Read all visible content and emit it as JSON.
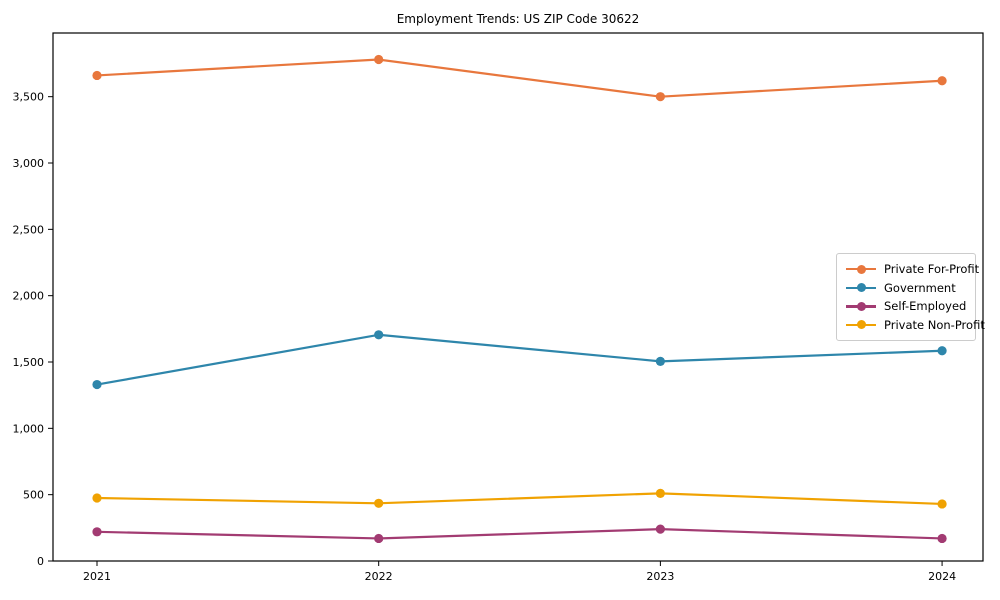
{
  "title": "Employment Trends: US ZIP Code 30622",
  "chart_data": {
    "type": "line",
    "title": "Employment Trends: US ZIP Code 30622",
    "xlabel": "",
    "ylabel": "",
    "grid": false,
    "legend_position": "right",
    "categories": [
      "2021",
      "2022",
      "2023",
      "2024"
    ],
    "series": [
      {
        "name": "Private For-Profit",
        "color": "#E8773D",
        "values": [
          3660,
          3780,
          3500,
          3620
        ]
      },
      {
        "name": "Government",
        "color": "#2E86AB",
        "values": [
          1330,
          1705,
          1505,
          1585
        ]
      },
      {
        "name": "Self-Employed",
        "color": "#A23B72",
        "values": [
          220,
          170,
          240,
          170
        ]
      },
      {
        "name": "Private Non-Profit",
        "color": "#F0A202",
        "values": [
          475,
          435,
          510,
          430
        ]
      }
    ],
    "ylim": [
      0,
      3980
    ],
    "ytick_values": [
      0,
      500,
      1000,
      1500,
      2000,
      2500,
      3000,
      3500
    ],
    "ytick_labels": [
      "0",
      "500",
      "1,000",
      "1,500",
      "2,000",
      "2,500",
      "3,000",
      "3,500"
    ]
  }
}
